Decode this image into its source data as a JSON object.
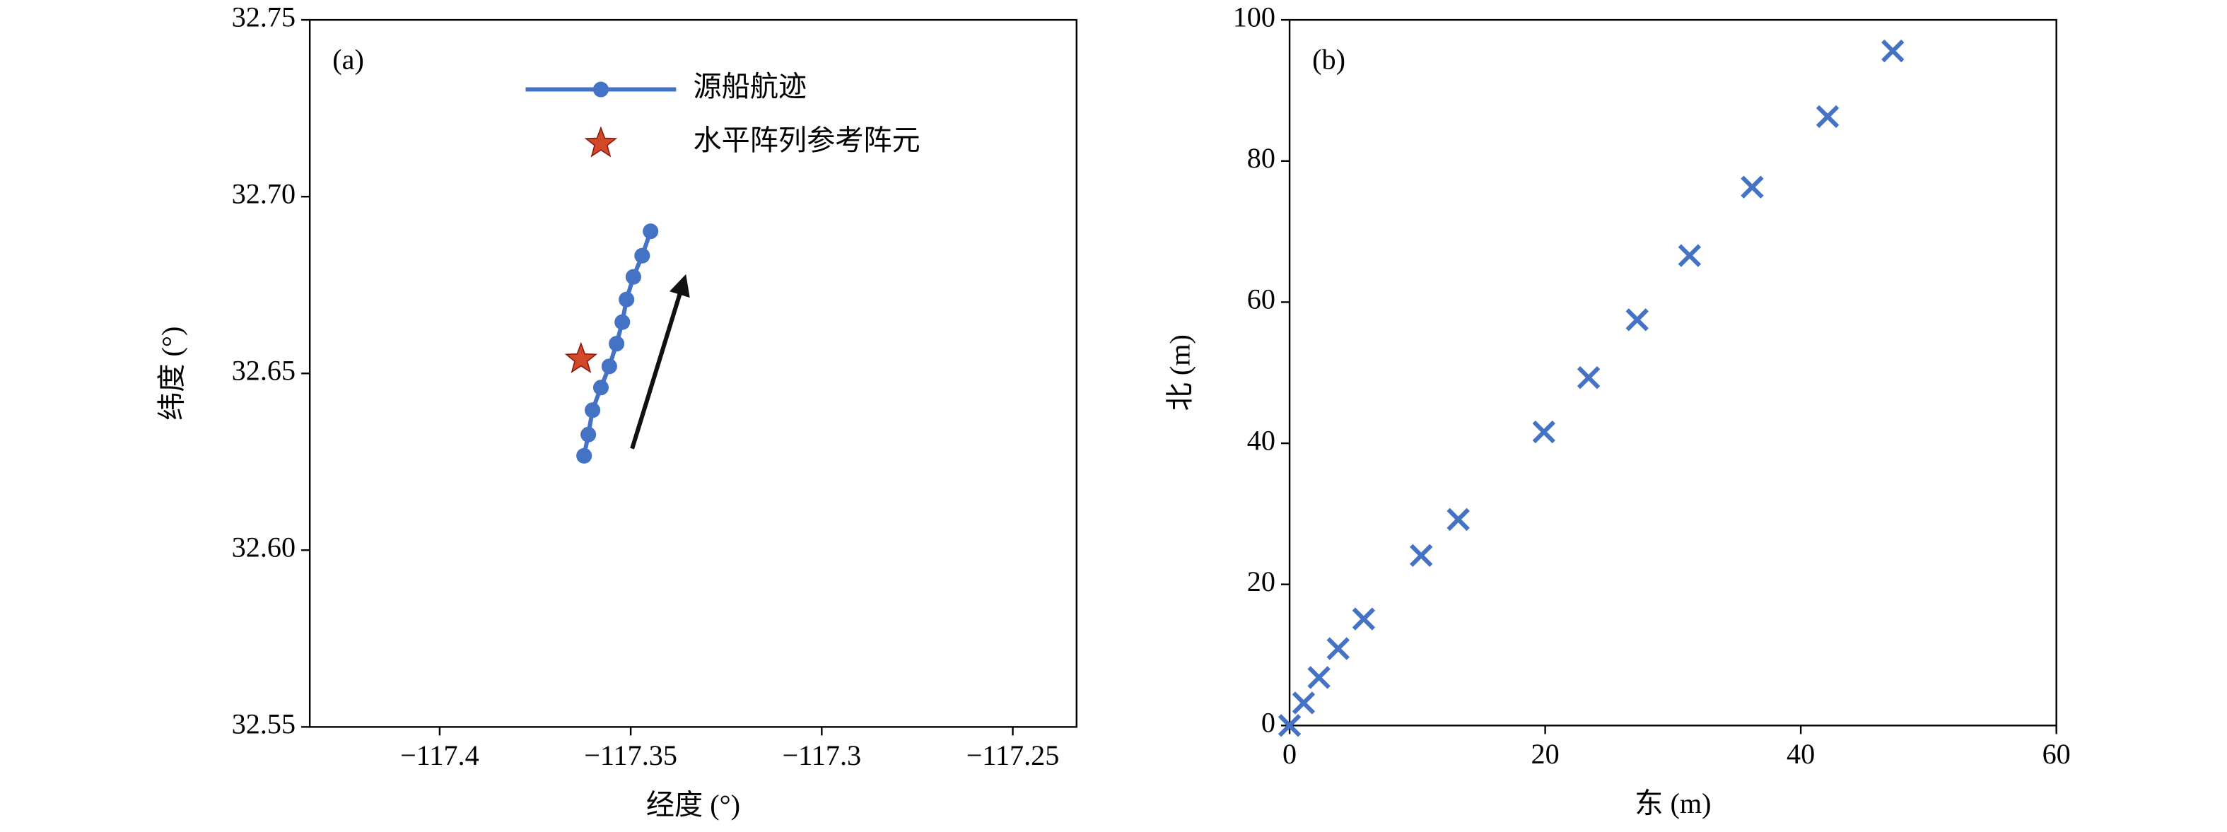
{
  "chart_data": [
    {
      "type": "line",
      "panel": "(a)",
      "x_label": "经度 (°)",
      "y_label": "纬度 (°)",
      "xlim": [
        -117.434,
        -117.2333
      ],
      "ylim": [
        32.55,
        32.75
      ],
      "xticks": [
        {
          "value": -117.4,
          "label": "−117.4"
        },
        {
          "value": -117.35,
          "label": "−117.35"
        },
        {
          "value": -117.3,
          "label": "−117.3"
        },
        {
          "value": -117.25,
          "label": "−117.25"
        }
      ],
      "yticks": [
        32.55,
        {
          "value": 32.6,
          "label": "32.60"
        },
        32.65,
        {
          "value": 32.7,
          "label": "32.70"
        },
        32.75
      ],
      "legend": "upper center",
      "series": [
        {
          "name": "源船航迹",
          "color": "#4472c4",
          "marker": "circle",
          "x": [
            -117.3622,
            -117.3611,
            -117.36,
            -117.3578,
            -117.3556,
            -117.3537,
            -117.3522,
            -117.3511,
            -117.3493,
            -117.347,
            -117.3448
          ],
          "values": [
            32.6267,
            32.6327,
            32.6396,
            32.646,
            32.652,
            32.6584,
            32.6645,
            32.6709,
            32.6773,
            32.6833,
            32.6902
          ]
        },
        {
          "name": "水平阵列参考阵元",
          "color": "#d2492a",
          "marker": "star",
          "x": [
            -117.363
          ],
          "values": [
            32.654
          ]
        }
      ]
    },
    {
      "type": "scatter",
      "panel": "(b)",
      "x_label": "东 (m)",
      "y_label": "北 (m)",
      "xlim": [
        0,
        60
      ],
      "ylim": [
        0,
        100
      ],
      "xticks": [
        0,
        20,
        40,
        60
      ],
      "yticks": [
        0,
        20,
        40,
        60,
        80,
        100
      ],
      "series": [
        {
          "color": "#4472c4",
          "marker": "x",
          "x": [
            0,
            1.1,
            2.3,
            3.8,
            5.8,
            10.3,
            13.2,
            19.9,
            23.4,
            27.2,
            31.3,
            36.2,
            42.1,
            47.2
          ],
          "values": [
            0,
            3.2,
            6.8,
            10.9,
            15.1,
            24.1,
            29.2,
            41.6,
            49.3,
            57.5,
            66.6,
            76.3,
            86.3,
            95.6
          ]
        }
      ]
    }
  ]
}
